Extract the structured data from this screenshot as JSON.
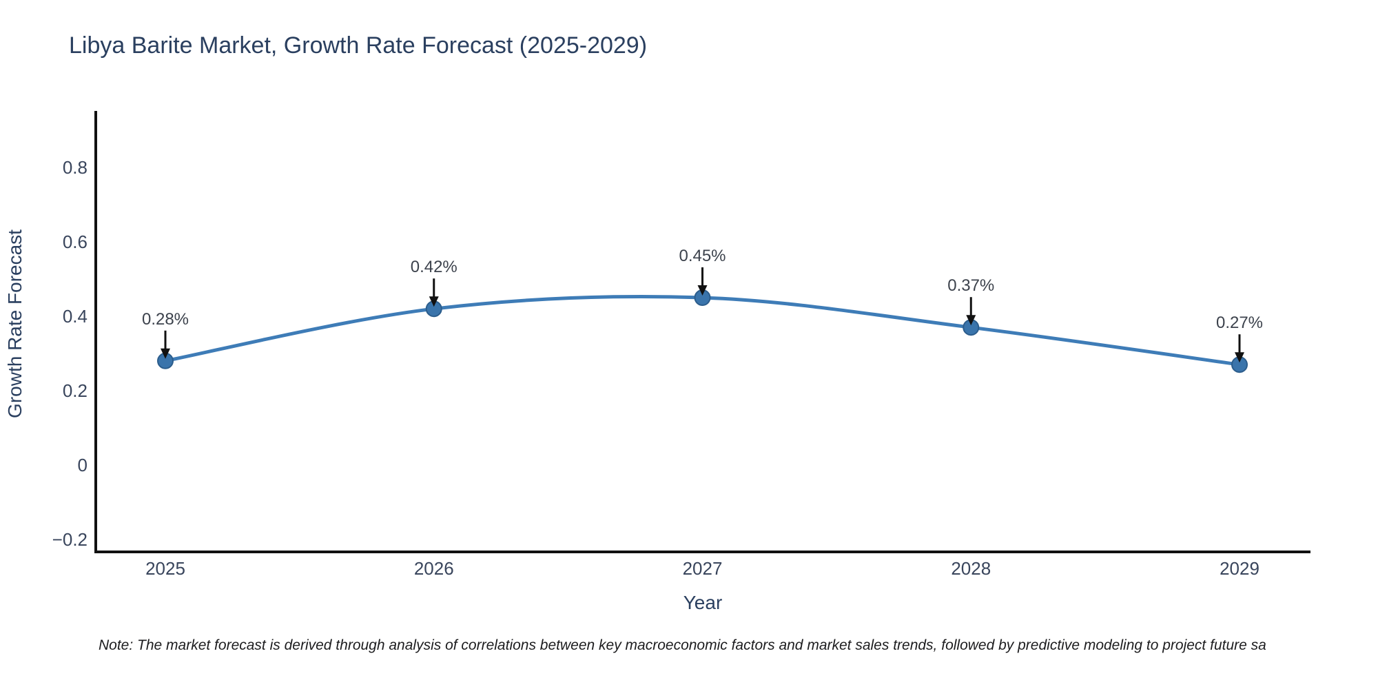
{
  "note": {
    "text": "Note: The market forecast is derived through analysis of correlations between key macroeconomic factors and market sales trends, followed by predictive modeling to project future sa"
  },
  "chart_data": {
    "type": "line",
    "title": "Libya Barite Market, Growth Rate Forecast (2025-2029)",
    "xlabel": "Year",
    "ylabel": "Growth Rate Forecast",
    "x": [
      2025,
      2026,
      2027,
      2028,
      2029
    ],
    "x_ticks": [
      "2025",
      "2026",
      "2027",
      "2028",
      "2029"
    ],
    "series": [
      {
        "name": "Growth Rate Forecast",
        "values": [
          0.28,
          0.42,
          0.45,
          0.37,
          0.27
        ]
      }
    ],
    "annotations": [
      "0.28%",
      "0.42%",
      "0.45%",
      "0.37%",
      "0.27%"
    ],
    "y_ticks": [
      "0.8",
      "0.6",
      "0.4",
      "0.2",
      "0",
      "−0.2"
    ],
    "y_tick_values": [
      0.8,
      0.6,
      0.4,
      0.2,
      0,
      -0.2
    ],
    "ylim": [
      -0.23,
      0.95
    ],
    "grid": false,
    "legend": "none",
    "line_shape": "spline",
    "colors": {
      "line": "#3e7cb7",
      "marker_fill": "#3a74ab",
      "marker_edge": "#2c5d8c",
      "axis_line": "#111111",
      "tick_text": "#39455c",
      "title_text": "#2a3f5f",
      "annotation_text": "#3c424c",
      "arrow": "#111111",
      "background": "#ffffff"
    }
  }
}
